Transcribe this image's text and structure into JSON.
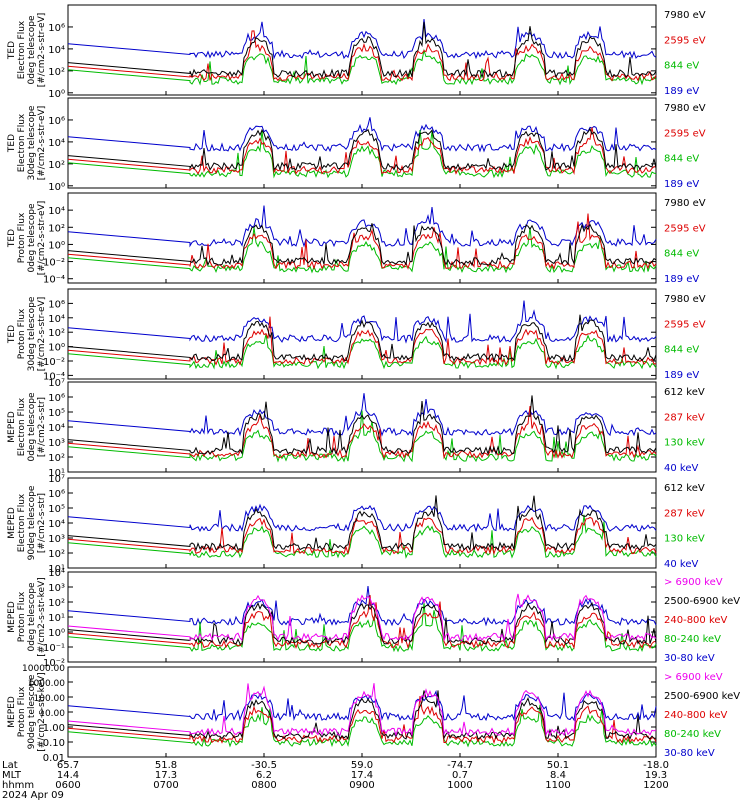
{
  "chart_data": {
    "type": "line",
    "x_axis": {
      "lat": [
        "65.7",
        "51.8",
        "-30.5",
        "59.0",
        "-74.7",
        "50.1",
        "-18.0"
      ],
      "mlt": [
        "14.4",
        "17.3",
        "6.2",
        "17.4",
        "0.7",
        "8.4",
        "19.3"
      ],
      "hhmm": [
        "0600",
        "0700",
        "0800",
        "0900",
        "1000",
        "1100",
        "1200"
      ],
      "row_labels": [
        "Lat",
        "MLT",
        "hhmm"
      ],
      "date": "2024 Apr 09"
    },
    "panels": [
      {
        "ylabel": [
          "TED",
          "Electron Flux",
          "0deg telescope",
          "[#/cm2-s-str-eV]"
        ],
        "yscale": "log",
        "ticks": [
          "10⁶",
          "10⁴",
          "10²",
          "10⁰"
        ],
        "tick_exps": [
          6,
          4,
          2,
          0
        ],
        "ylim_exp": [
          -0.2,
          8
        ],
        "legend": [
          {
            "label": "7980 eV",
            "color": "#000000"
          },
          {
            "label": "2595 eV",
            "color": "#dd0000"
          },
          {
            "label": "844 eV",
            "color": "#00bb00"
          },
          {
            "label": "189 eV",
            "color": "#0000cc"
          }
        ]
      },
      {
        "ylabel": [
          "TED",
          "Electron Flux",
          "30deg telescope",
          "[#/cm2-s-str-eV]"
        ],
        "yscale": "log",
        "ticks": [
          "10⁶",
          "10⁴",
          "10²",
          "10⁰"
        ],
        "tick_exps": [
          6,
          4,
          2,
          0
        ],
        "ylim_exp": [
          -0.2,
          8
        ],
        "legend": [
          {
            "label": "7980 eV",
            "color": "#000000"
          },
          {
            "label": "2595 eV",
            "color": "#dd0000"
          },
          {
            "label": "844 eV",
            "color": "#00bb00"
          },
          {
            "label": "189 eV",
            "color": "#0000cc"
          }
        ]
      },
      {
        "ylabel": [
          "TED",
          "Proton Flux",
          "0deg telescope",
          "[#/cm2-s-str-eV]"
        ],
        "yscale": "log",
        "ticks": [
          "10⁴",
          "10²",
          "10⁰",
          "10⁻²",
          "10⁻⁴"
        ],
        "tick_exps": [
          4,
          2,
          0,
          -2,
          -4
        ],
        "ylim_exp": [
          -4.5,
          6
        ],
        "legend": [
          {
            "label": "7980 eV",
            "color": "#000000"
          },
          {
            "label": "2595 eV",
            "color": "#dd0000"
          },
          {
            "label": "844 eV",
            "color": "#00bb00"
          },
          {
            "label": "189 eV",
            "color": "#0000cc"
          }
        ]
      },
      {
        "ylabel": [
          "TED",
          "Proton Flux",
          "30deg telescope",
          "[#/cm2-s-str-eV]"
        ],
        "yscale": "log",
        "ticks": [
          "10⁶",
          "10⁴",
          "10²",
          "10⁰",
          "10⁻²",
          "10⁻⁴"
        ],
        "tick_exps": [
          6,
          4,
          2,
          0,
          -2,
          -4
        ],
        "ylim_exp": [
          -4.5,
          8
        ],
        "legend": [
          {
            "label": "7980 eV",
            "color": "#000000"
          },
          {
            "label": "2595 eV",
            "color": "#dd0000"
          },
          {
            "label": "844 eV",
            "color": "#00bb00"
          },
          {
            "label": "189 eV",
            "color": "#0000cc"
          }
        ]
      },
      {
        "ylabel": [
          "MEPED",
          "Electron Flux",
          "0deg telescope",
          "[#/cm2-s-str]"
        ],
        "yscale": "log",
        "ticks": [
          "10⁷",
          "10⁶",
          "10⁵",
          "10⁴",
          "10³",
          "10²",
          "10¹"
        ],
        "tick_exps": [
          7,
          6,
          5,
          4,
          3,
          2,
          1
        ],
        "ylim_exp": [
          1,
          7
        ],
        "legend": [
          {
            "label": "612 keV",
            "color": "#000000"
          },
          {
            "label": "287 keV",
            "color": "#dd0000"
          },
          {
            "label": "130 keV",
            "color": "#00bb00"
          },
          {
            "label": "40 keV",
            "color": "#0000cc"
          }
        ]
      },
      {
        "ylabel": [
          "MEPED",
          "Electron Flux",
          "90deg telescope",
          "[#/cm2-s-str]"
        ],
        "yscale": "log",
        "ticks": [
          "10⁷",
          "10⁶",
          "10⁵",
          "10⁴",
          "10³",
          "10²",
          "10¹"
        ],
        "tick_exps": [
          7,
          6,
          5,
          4,
          3,
          2,
          1
        ],
        "ylim_exp": [
          1,
          7
        ],
        "legend": [
          {
            "label": "612 keV",
            "color": "#000000"
          },
          {
            "label": "287 keV",
            "color": "#dd0000"
          },
          {
            "label": "130 keV",
            "color": "#00bb00"
          },
          {
            "label": "40 keV",
            "color": "#0000cc"
          }
        ]
      },
      {
        "ylabel": [
          "MEPED",
          "Proton Flux",
          "0deg telescope",
          "[#/cm2-s-str-keV]"
        ],
        "yscale": "log",
        "ticks": [
          "10⁴",
          "10³",
          "10²",
          "10¹",
          "10⁰",
          "10⁻¹",
          "10⁻²"
        ],
        "tick_exps": [
          4,
          3,
          2,
          1,
          0,
          -1,
          -2
        ],
        "ylim_exp": [
          -2,
          4
        ],
        "legend": [
          {
            "label": "> 6900 keV",
            "color": "#ee00ee"
          },
          {
            "label": "2500-6900 keV",
            "color": "#000000"
          },
          {
            "label": "240-800 keV",
            "color": "#dd0000"
          },
          {
            "label": "80-240 keV",
            "color": "#00bb00"
          },
          {
            "label": "30-80 keV",
            "color": "#0000cc"
          }
        ]
      },
      {
        "ylabel": [
          "MEPED",
          "Proton Flux",
          "90deg telescope",
          "[#/cm2-s-str-keV]"
        ],
        "yscale": "log",
        "ticks": [
          "10000.00",
          "1000.00",
          "100.00",
          "10.00",
          "1.00",
          "0.10",
          "0.01"
        ],
        "tick_exps": [
          4,
          3,
          2,
          1,
          0,
          -1,
          -2
        ],
        "ylim_exp": [
          -2,
          4
        ],
        "legend": [
          {
            "label": "> 6900 keV",
            "color": "#ee00ee"
          },
          {
            "label": "2500-6900 keV",
            "color": "#000000"
          },
          {
            "label": "240-800 keV",
            "color": "#dd0000"
          },
          {
            "label": "80-240 keV",
            "color": "#00bb00"
          },
          {
            "label": "30-80 keV",
            "color": "#0000cc"
          }
        ]
      }
    ]
  }
}
